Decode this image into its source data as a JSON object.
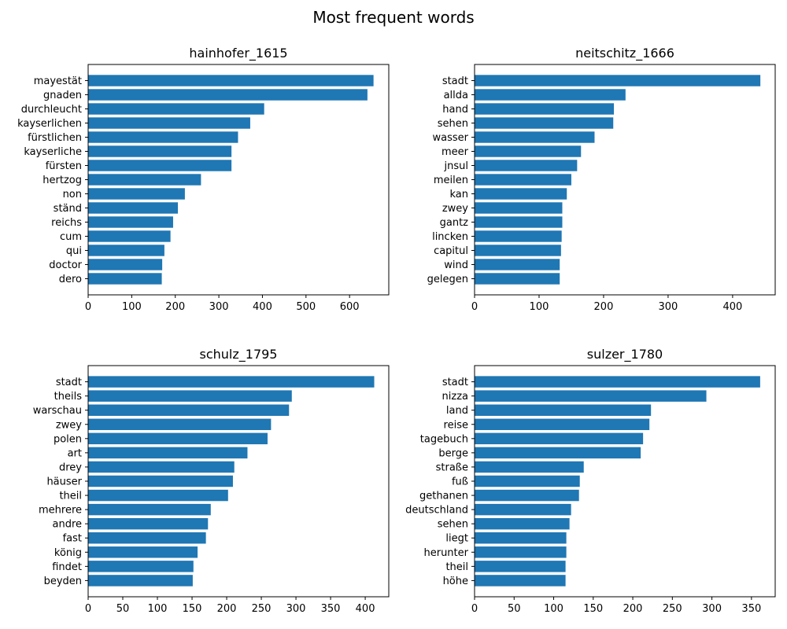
{
  "figure": {
    "title": "Most frequent words"
  },
  "chart_data": [
    {
      "type": "bar",
      "orientation": "horizontal",
      "title": "hainhofer_1615",
      "categories": [
        "mayestät",
        "gnaden",
        "durchleucht",
        "kayserlichen",
        "fürstlichen",
        "kayserliche",
        "fürsten",
        "hertzog",
        "non",
        "ständ",
        "reichs",
        "cum",
        "qui",
        "doctor",
        "dero"
      ],
      "values": [
        655,
        641,
        404,
        372,
        344,
        329,
        329,
        259,
        222,
        206,
        195,
        189,
        175,
        170,
        169
      ],
      "xlim": [
        0,
        690
      ],
      "xticks": [
        0,
        100,
        200,
        300,
        400,
        500,
        600
      ],
      "color": "#1f77b4"
    },
    {
      "type": "bar",
      "orientation": "horizontal",
      "title": "neitschitz_1666",
      "categories": [
        "stadt",
        "allda",
        "hand",
        "sehen",
        "wasser",
        "meer",
        "jnsul",
        "meilen",
        "kan",
        "zwey",
        "gantz",
        "lincken",
        "capitul",
        "wind",
        "gelegen"
      ],
      "values": [
        443,
        234,
        216,
        215,
        186,
        165,
        159,
        150,
        143,
        136,
        136,
        135,
        134,
        132,
        132
      ],
      "xlim": [
        0,
        466
      ],
      "xticks": [
        0,
        100,
        200,
        300,
        400
      ],
      "color": "#1f77b4"
    },
    {
      "type": "bar",
      "orientation": "horizontal",
      "title": "schulz_1795",
      "categories": [
        "stadt",
        "theils",
        "warschau",
        "zwey",
        "polen",
        "art",
        "drey",
        "häuser",
        "theil",
        "mehrere",
        "andre",
        "fast",
        "könig",
        "findet",
        "beyden"
      ],
      "values": [
        413,
        294,
        290,
        264,
        259,
        230,
        211,
        209,
        202,
        177,
        173,
        170,
        158,
        152,
        151
      ],
      "xlim": [
        0,
        434
      ],
      "xticks": [
        0,
        50,
        100,
        150,
        200,
        250,
        300,
        350,
        400
      ],
      "color": "#1f77b4"
    },
    {
      "type": "bar",
      "orientation": "horizontal",
      "title": "sulzer_1780",
      "categories": [
        "stadt",
        "nizza",
        "land",
        "reise",
        "tagebuch",
        "berge",
        "straße",
        "fuß",
        "gethanen",
        "deutschland",
        "sehen",
        "liegt",
        "herunter",
        "theil",
        "höhe"
      ],
      "values": [
        361,
        293,
        223,
        221,
        213,
        210,
        138,
        133,
        132,
        122,
        120,
        116,
        116,
        115,
        115
      ],
      "xlim": [
        0,
        380
      ],
      "xticks": [
        0,
        50,
        100,
        150,
        200,
        250,
        300,
        350
      ],
      "color": "#1f77b4"
    }
  ]
}
